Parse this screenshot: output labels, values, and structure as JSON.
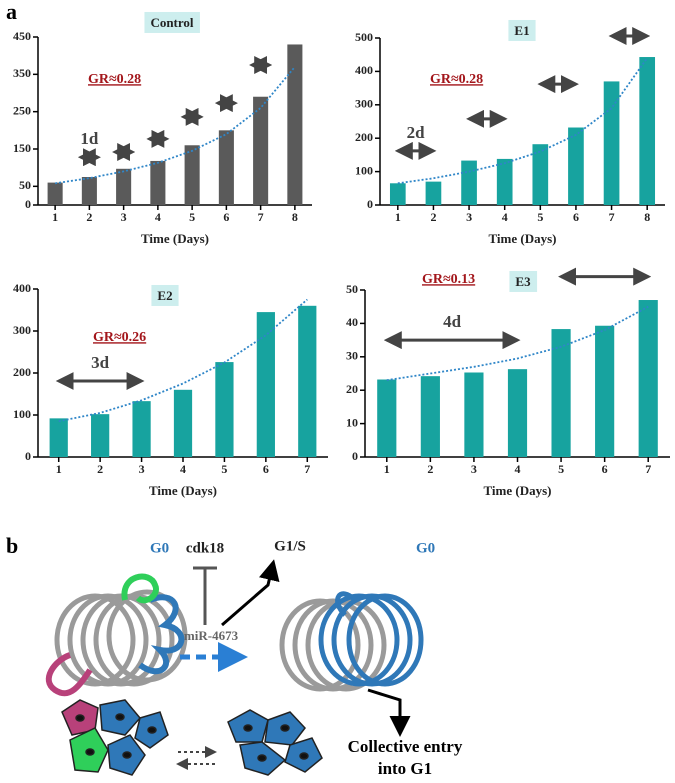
{
  "panel_labels": {
    "a": "a",
    "b": "b"
  },
  "chart_data": [
    {
      "type": "bar",
      "title": "Control",
      "x_label": "Time (Days)",
      "categories": [
        "1",
        "2",
        "3",
        "4",
        "5",
        "6",
        "7",
        "8"
      ],
      "values": [
        60,
        75,
        97,
        118,
        160,
        200,
        290,
        430
      ],
      "color": "#5a5a5a",
      "trend": [
        58,
        72,
        90,
        113,
        145,
        190,
        260,
        370
      ],
      "trend_color": "#2f86c8",
      "ylim": [
        0,
        450
      ],
      "yticks": [
        0,
        50,
        150,
        250,
        350,
        450
      ],
      "annotations": {
        "growth_rate": "GR≈0.28",
        "interval": "1d"
      },
      "arrows": [
        {
          "x": [
            1.75,
            2.25
          ],
          "y": 128
        },
        {
          "x": [
            2.75,
            3.25
          ],
          "y": 142
        },
        {
          "x": [
            3.75,
            4.25
          ],
          "y": 177
        },
        {
          "x": [
            4.75,
            5.25
          ],
          "y": 236
        },
        {
          "x": [
            5.75,
            6.25
          ],
          "y": 273
        },
        {
          "x": [
            6.75,
            7.25
          ],
          "y": 375
        }
      ]
    },
    {
      "type": "bar",
      "title": "E1",
      "x_label": "Time (Days)",
      "categories": [
        "1",
        "2",
        "3",
        "4",
        "5",
        "6",
        "7",
        "8"
      ],
      "values": [
        65,
        70,
        133,
        138,
        182,
        232,
        370,
        443
      ],
      "color": "#17a39f",
      "trend": [
        65,
        80,
        100,
        125,
        160,
        210,
        290,
        440
      ],
      "trend_color": "#2f86c8",
      "ylim": [
        0,
        500
      ],
      "yticks": [
        0,
        100,
        200,
        300,
        400,
        500
      ],
      "annotations": {
        "growth_rate": "GR≈0.28",
        "interval": "2d"
      },
      "arrows": [
        {
          "x": [
            1,
            2
          ],
          "y": 162
        },
        {
          "x": [
            3,
            4
          ],
          "y": 258
        },
        {
          "x": [
            5,
            6
          ],
          "y": 362
        },
        {
          "x": [
            7,
            8
          ],
          "y": 506
        }
      ]
    },
    {
      "type": "bar",
      "title": "E2",
      "x_label": "Time (Days)",
      "categories": [
        "1",
        "2",
        "3",
        "4",
        "5",
        "6",
        "7"
      ],
      "values": [
        92,
        102,
        133,
        160,
        226,
        345,
        360
      ],
      "color": "#17a39f",
      "trend": [
        85,
        105,
        135,
        175,
        225,
        290,
        375
      ],
      "trend_color": "#2f86c8",
      "ylim": [
        0,
        400
      ],
      "yticks": [
        0,
        100,
        200,
        300,
        400
      ],
      "annotations": {
        "growth_rate": "GR≈0.26",
        "interval": "3d"
      },
      "arrows": [
        {
          "x": [
            1,
            3
          ],
          "y": 181
        }
      ]
    },
    {
      "type": "bar",
      "title": "E3",
      "x_label": "Time (Days)",
      "categories": [
        "1",
        "2",
        "3",
        "4",
        "5",
        "6",
        "7"
      ],
      "values": [
        23.2,
        24.2,
        25.3,
        26.3,
        38.3,
        39.3,
        47
      ],
      "color": "#17a39f",
      "trend": [
        23,
        25,
        27,
        29.5,
        33,
        38,
        45
      ],
      "trend_color": "#2f86c8",
      "ylim": [
        0,
        50
      ],
      "yticks": [
        0,
        10,
        20,
        30,
        40,
        50
      ],
      "annotations": {
        "growth_rate": "GR≈0.13",
        "interval": "4d"
      },
      "arrows": [
        {
          "x": [
            1,
            4
          ],
          "y": 35
        },
        {
          "x": [
            5,
            7
          ],
          "y": 54
        }
      ]
    }
  ],
  "diagram": {
    "inhibited": "cdk18",
    "promoted": "G1/S",
    "mirna": "miR-4673",
    "state_left": "G0",
    "state_right": "G0",
    "outcome": [
      "Collective entry",
      "into G1"
    ]
  }
}
